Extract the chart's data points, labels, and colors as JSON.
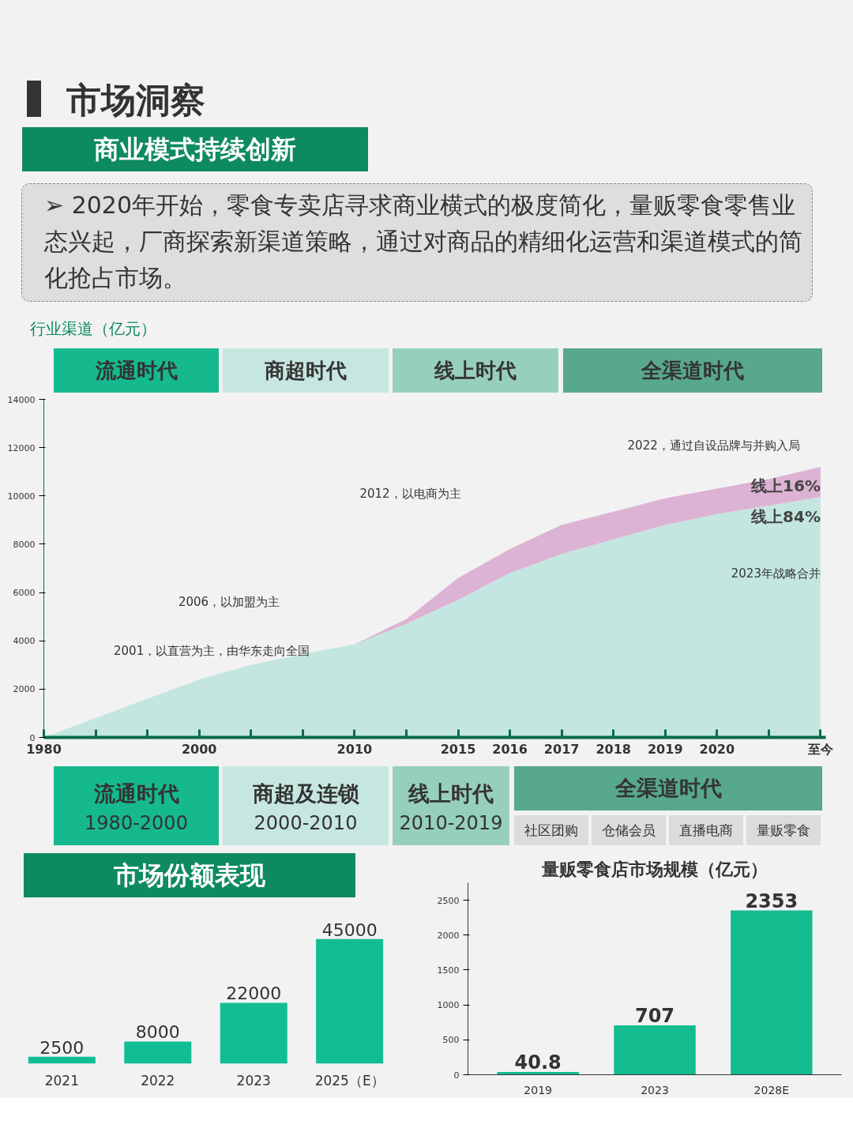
{
  "chart_data": [
    {
      "type": "area",
      "title": "市场洞察",
      "subtitle": "商业模式持续创新",
      "ylabel": "行业渠道（亿元）",
      "stacked": true,
      "categories": [
        "1980",
        null,
        null,
        "2000",
        null,
        null,
        "2010",
        null,
        "2015",
        "2016",
        "2017",
        "2018",
        "2019",
        "2020",
        null,
        "至今"
      ],
      "series": [
        {
          "name": "线上84%",
          "color": "#c3e7e0",
          "values": [
            0,
            800,
            1600,
            2400,
            3000,
            3450,
            3850,
            4700,
            5700,
            6800,
            7600,
            8200,
            8800,
            9250,
            9600,
            9950
          ]
        },
        {
          "name": "线上16%",
          "color": "#dcb3d4",
          "values": [
            0,
            0,
            0,
            0,
            0,
            0,
            0,
            200,
            900,
            1000,
            1200,
            1150,
            1100,
            1050,
            1100,
            1250
          ]
        }
      ],
      "ylim": [
        0,
        14000
      ],
      "yticks": [
        0,
        2000,
        4000,
        6000,
        8000,
        10000,
        12000,
        14000
      ],
      "annotations": [
        "➢ 2020年开始，零食专卖店寻求商业横式的极度简化，量贩零食零售业态兴起，厂商探索新渠道策略，通过对商品的精细化运营和渠道模式的简化抢占市场。",
        "流通时代",
        "商超时代",
        "线上时代",
        "全渠道时代",
        "2001，以直营为主，由华东走向全国",
        "2006，以加盟为主",
        "2012，以电商为主",
        "2022，通过自设品牌与并购入局",
        "2023年战略合并",
        "流通时代",
        "1980-2000",
        "商超及连锁",
        "2000-2010",
        "线上时代",
        "2010-2019",
        "全渠道时代",
        "社区团购",
        "仓储会员",
        "直播电商",
        "量贩零食"
      ]
    },
    {
      "type": "bar",
      "title": "市场份额表现",
      "categories": [
        "2021",
        "2022",
        "2023",
        "2025（E）"
      ],
      "values": [
        2500,
        8000,
        22000,
        45000
      ],
      "color": "#12bd93",
      "data_labels": true,
      "tick_labels": "x"
    },
    {
      "type": "bar",
      "title": "量贩零食店市场规模（亿元）",
      "categories": [
        "2019",
        "2023",
        "2028E"
      ],
      "values": [
        40.8,
        707,
        2353
      ],
      "color": "#14bb8f",
      "data_labels": true,
      "ylim": [
        0,
        2750
      ],
      "yticks": [
        0,
        500,
        1000,
        1500,
        2000,
        2500
      ]
    }
  ]
}
